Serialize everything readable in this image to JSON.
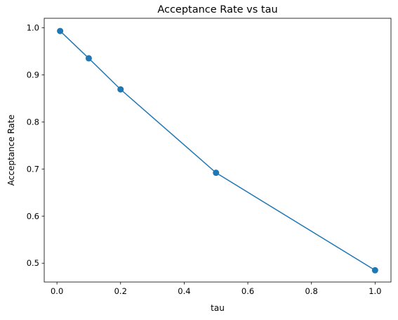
{
  "chart_data": {
    "type": "line",
    "title": "Acceptance Rate vs tau",
    "xlabel": "tau",
    "ylabel": "Acceptance Rate",
    "xlim": [
      -0.04,
      1.05
    ],
    "ylim": [
      0.46,
      1.02
    ],
    "xticks": [
      0.0,
      0.2,
      0.4,
      0.6,
      0.8,
      1.0
    ],
    "xtick_labels": [
      "0.0",
      "0.2",
      "0.4",
      "0.6",
      "0.8",
      "1.0"
    ],
    "yticks": [
      0.5,
      0.6,
      0.7,
      0.8,
      0.9,
      1.0
    ],
    "ytick_labels": [
      "0.5",
      "0.6",
      "0.7",
      "0.8",
      "0.9",
      "1.0"
    ],
    "grid": false,
    "series": [
      {
        "x": [
          0.01,
          0.1,
          0.2,
          0.5,
          1.0
        ],
        "y": [
          0.993,
          0.935,
          0.869,
          0.692,
          0.485
        ],
        "color": "#1f77b4",
        "marker": "circle"
      }
    ]
  }
}
